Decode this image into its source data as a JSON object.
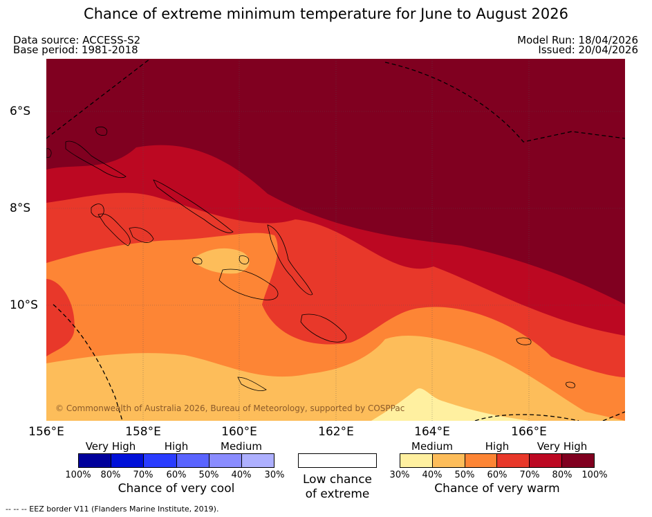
{
  "title": "Chance of extreme minimum temperature for June to August 2026",
  "meta": {
    "data_source": "Data source: ACCESS-S2",
    "base_period": "Base period: 1981-2018",
    "model_run": "Model Run: 18/04/2026",
    "issued": "Issued: 20/04/2026"
  },
  "map": {
    "lon_labels": [
      "156°E",
      "158°E",
      "160°E",
      "162°E",
      "164°E",
      "166°E"
    ],
    "lat_labels": [
      "6°S",
      "8°S",
      "10°S"
    ],
    "copyright": "© Commonwealth of Australia 2026, Bureau of Meteorology, supported by COSPPac"
  },
  "legend": {
    "cool": {
      "categories": [
        "Very High",
        "High",
        "Medium"
      ],
      "ticks": [
        "100%",
        "80%",
        "70%",
        "60%",
        "50%",
        "40%",
        "30%"
      ],
      "colors": [
        "#00009b",
        "#0010d8",
        "#2a3cff",
        "#5a64ff",
        "#8a8cff",
        "#aeb0ff"
      ],
      "title": "Chance of very cool"
    },
    "neutral": {
      "title_line1": "Low chance",
      "title_line2": "of extreme"
    },
    "warm": {
      "categories": [
        "Medium",
        "High",
        "Very High"
      ],
      "ticks": [
        "30%",
        "40%",
        "50%",
        "60%",
        "70%",
        "80%",
        "100%"
      ],
      "colors": [
        "#fff0a0",
        "#fdbd5a",
        "#fd8535",
        "#e8382a",
        "#bc0822",
        "#800020"
      ],
      "title": "Chance of very warm"
    }
  },
  "footnote": "--  --  -- EEZ border V11 (Flanders Marine Institute, 2019)."
}
